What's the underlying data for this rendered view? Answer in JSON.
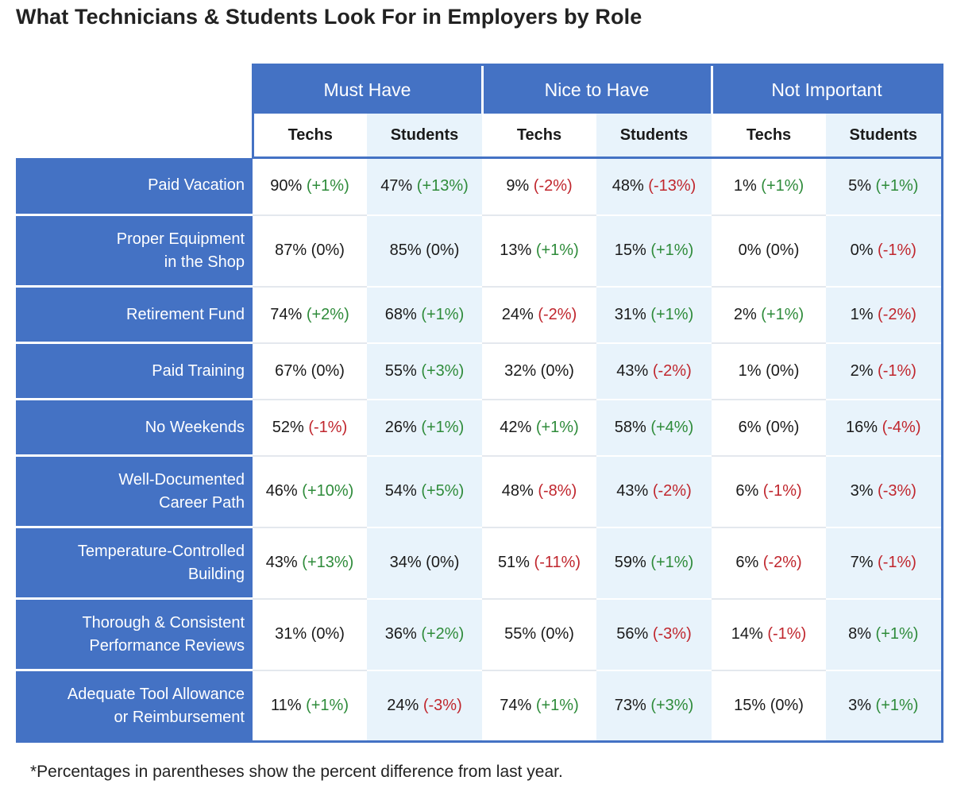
{
  "title": "What Technicians & Students Look For in Employers by Role",
  "footnote": "*Percentages in parentheses show the percent difference from last year.",
  "colors": {
    "header_blue": "#4472c4",
    "students_tint": "#e8f3fb",
    "positive": "#2e8b3a",
    "negative": "#c0262d"
  },
  "chart_data": {
    "type": "table",
    "groups": [
      "Must Have",
      "Nice to Have",
      "Not Important"
    ],
    "subcolumns": [
      "Techs",
      "Students"
    ],
    "rows": [
      {
        "label": [
          "Paid Vacation"
        ],
        "cells": [
          [
            "90%",
            "(+1%)"
          ],
          [
            "47%",
            "(+13%)"
          ],
          [
            "9%",
            "(-2%)"
          ],
          [
            "48%",
            "(-13%)"
          ],
          [
            "1%",
            "(+1%)"
          ],
          [
            "5%",
            "(+1%)"
          ]
        ]
      },
      {
        "label": [
          "Proper Equipment",
          "in the Shop"
        ],
        "cells": [
          [
            "87%",
            "(0%)"
          ],
          [
            "85%",
            "(0%)"
          ],
          [
            "13%",
            "(+1%)"
          ],
          [
            "15%",
            "(+1%)"
          ],
          [
            "0%",
            "(0%)"
          ],
          [
            "0%",
            "(-1%)"
          ]
        ]
      },
      {
        "label": [
          "Retirement Fund"
        ],
        "cells": [
          [
            "74%",
            "(+2%)"
          ],
          [
            "68%",
            "(+1%)"
          ],
          [
            "24%",
            "(-2%)"
          ],
          [
            "31%",
            "(+1%)"
          ],
          [
            "2%",
            "(+1%)"
          ],
          [
            "1%",
            "(-2%)"
          ]
        ]
      },
      {
        "label": [
          "Paid Training"
        ],
        "cells": [
          [
            "67%",
            "(0%)"
          ],
          [
            "55%",
            "(+3%)"
          ],
          [
            "32%",
            "(0%)"
          ],
          [
            "43%",
            "(-2%)"
          ],
          [
            "1%",
            "(0%)"
          ],
          [
            "2%",
            "(-1%)"
          ]
        ]
      },
      {
        "label": [
          "No Weekends"
        ],
        "cells": [
          [
            "52%",
            "(-1%)"
          ],
          [
            "26%",
            "(+1%)"
          ],
          [
            "42%",
            "(+1%)"
          ],
          [
            "58%",
            "(+4%)"
          ],
          [
            "6%",
            "(0%)"
          ],
          [
            "16%",
            "(-4%)"
          ]
        ]
      },
      {
        "label": [
          "Well-Documented",
          "Career Path"
        ],
        "cells": [
          [
            "46%",
            "(+10%)"
          ],
          [
            "54%",
            "(+5%)"
          ],
          [
            "48%",
            "(-8%)"
          ],
          [
            "43%",
            "(-2%)"
          ],
          [
            "6%",
            "(-1%)"
          ],
          [
            "3%",
            "(-3%)"
          ]
        ]
      },
      {
        "label": [
          "Temperature-Controlled",
          "Building"
        ],
        "cells": [
          [
            "43%",
            "(+13%)"
          ],
          [
            "34%",
            "(0%)"
          ],
          [
            "51%",
            "(-11%)"
          ],
          [
            "59%",
            "(+1%)"
          ],
          [
            "6%",
            "(-2%)"
          ],
          [
            "7%",
            "(-1%)"
          ]
        ]
      },
      {
        "label": [
          "Thorough & Consistent",
          "Performance Reviews"
        ],
        "cells": [
          [
            "31%",
            "(0%)"
          ],
          [
            "36%",
            "(+2%)"
          ],
          [
            "55%",
            "(0%)"
          ],
          [
            "56%",
            "(-3%)"
          ],
          [
            "14%",
            "(-1%)"
          ],
          [
            "8%",
            "(+1%)"
          ]
        ]
      },
      {
        "label": [
          "Adequate Tool Allowance",
          "or Reimbursement"
        ],
        "cells": [
          [
            "11%",
            "(+1%)"
          ],
          [
            "24%",
            "(-3%)"
          ],
          [
            "74%",
            "(+1%)"
          ],
          [
            "73%",
            "(+3%)"
          ],
          [
            "15%",
            "(0%)"
          ],
          [
            "3%",
            "(+1%)"
          ]
        ]
      }
    ]
  }
}
